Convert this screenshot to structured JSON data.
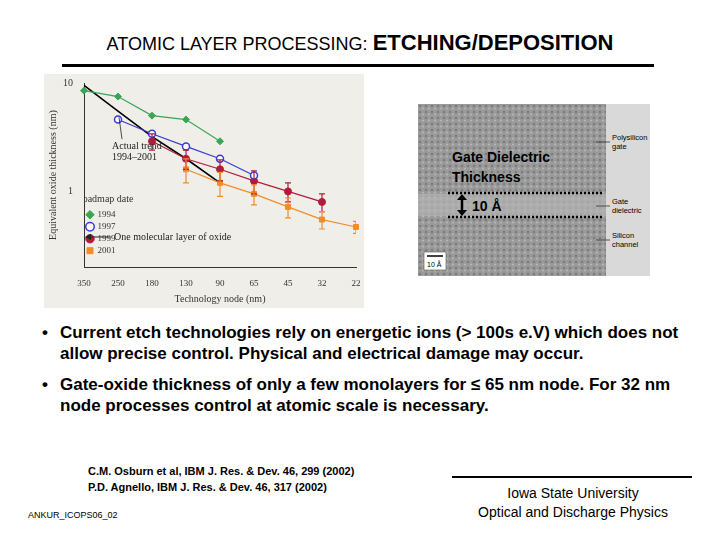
{
  "title": {
    "main": "ATOMIC LAYER PROCESSING:",
    "emphasis": "ETCHING/DEPOSITION"
  },
  "chart_data": {
    "type": "line",
    "x_label": "Technology node (nm)",
    "y_label": "Equivalent oxide thickness (nm)",
    "log": "y",
    "grid": false,
    "legend": "top-right",
    "legend_title": "Roadmap date",
    "categories": [
      "350",
      "250",
      "180",
      "130",
      "90",
      "65",
      "45",
      "32",
      "22"
    ],
    "ylim": [
      0.2,
      10
    ],
    "yticks": [
      1,
      10
    ],
    "series": [
      {
        "name": "1994",
        "color": "#3aa655",
        "marker": "diamond",
        "line_style": "solid",
        "values": [
          8.5,
          7.5,
          5.0,
          4.6,
          2.9,
          null,
          null,
          null,
          null
        ]
      },
      {
        "name": "1997",
        "color": "#3b3bd0",
        "marker": "circle-open",
        "line_style": "solid",
        "values": [
          null,
          4.6,
          3.4,
          2.6,
          2.0,
          1.4,
          null,
          null,
          null
        ]
      },
      {
        "name": "1999",
        "color": "#b01c3c",
        "marker": "circle",
        "line_style": "solid",
        "values": [
          null,
          null,
          2.9,
          2.0,
          1.6,
          1.25,
          1.0,
          0.8,
          null
        ],
        "errors": [
          null,
          null,
          0.5,
          0.4,
          0.35,
          0.3,
          0.2,
          0.15,
          null
        ]
      },
      {
        "name": "2001",
        "color": "#f28c28",
        "marker": "square",
        "line_style": "solid",
        "values": [
          null,
          null,
          null,
          1.6,
          1.2,
          0.95,
          0.72,
          0.55,
          0.47
        ],
        "errors": [
          null,
          null,
          null,
          0.4,
          0.3,
          0.2,
          0.15,
          0.1,
          0.06
        ]
      },
      {
        "name": "Actual trend 1994–2001",
        "color": "#000000",
        "marker": "none",
        "line_style": "solid",
        "values": [
          9.5,
          5.5,
          3.2,
          2.0,
          1.2,
          null,
          null,
          null,
          null
        ]
      }
    ],
    "annotations": [
      {
        "text": "One molecular layer of oxide",
        "y": 0.38
      }
    ]
  },
  "image": {
    "caption": "Gate Dielectric Thickness",
    "thickness": "10 Å",
    "labels": [
      "Polysilicon gate",
      "Gate dielectric",
      "Silicon channel"
    ],
    "scale_bar": "10 Å"
  },
  "bullets": [
    "Current etch technologies rely on energetic ions (> 100s e.V) which does not allow precise control. Physical and electrical damage may occur.",
    "Gate-oxide thickness of only a few monolayers for ≤ 65 nm node. For 32 nm node processes control at atomic scale is necessary."
  ],
  "references": [
    "C.M. Osburn et al, IBM J. Res. & Dev. 46, 299 (2002)",
    "P.D. Agnello, IBM J. Res. & Dev. 46, 317 (2002)"
  ],
  "footer": {
    "code": "ANKUR_ICOPS06_02",
    "institution": "Iowa State University",
    "group": "Optical and Discharge Physics"
  }
}
